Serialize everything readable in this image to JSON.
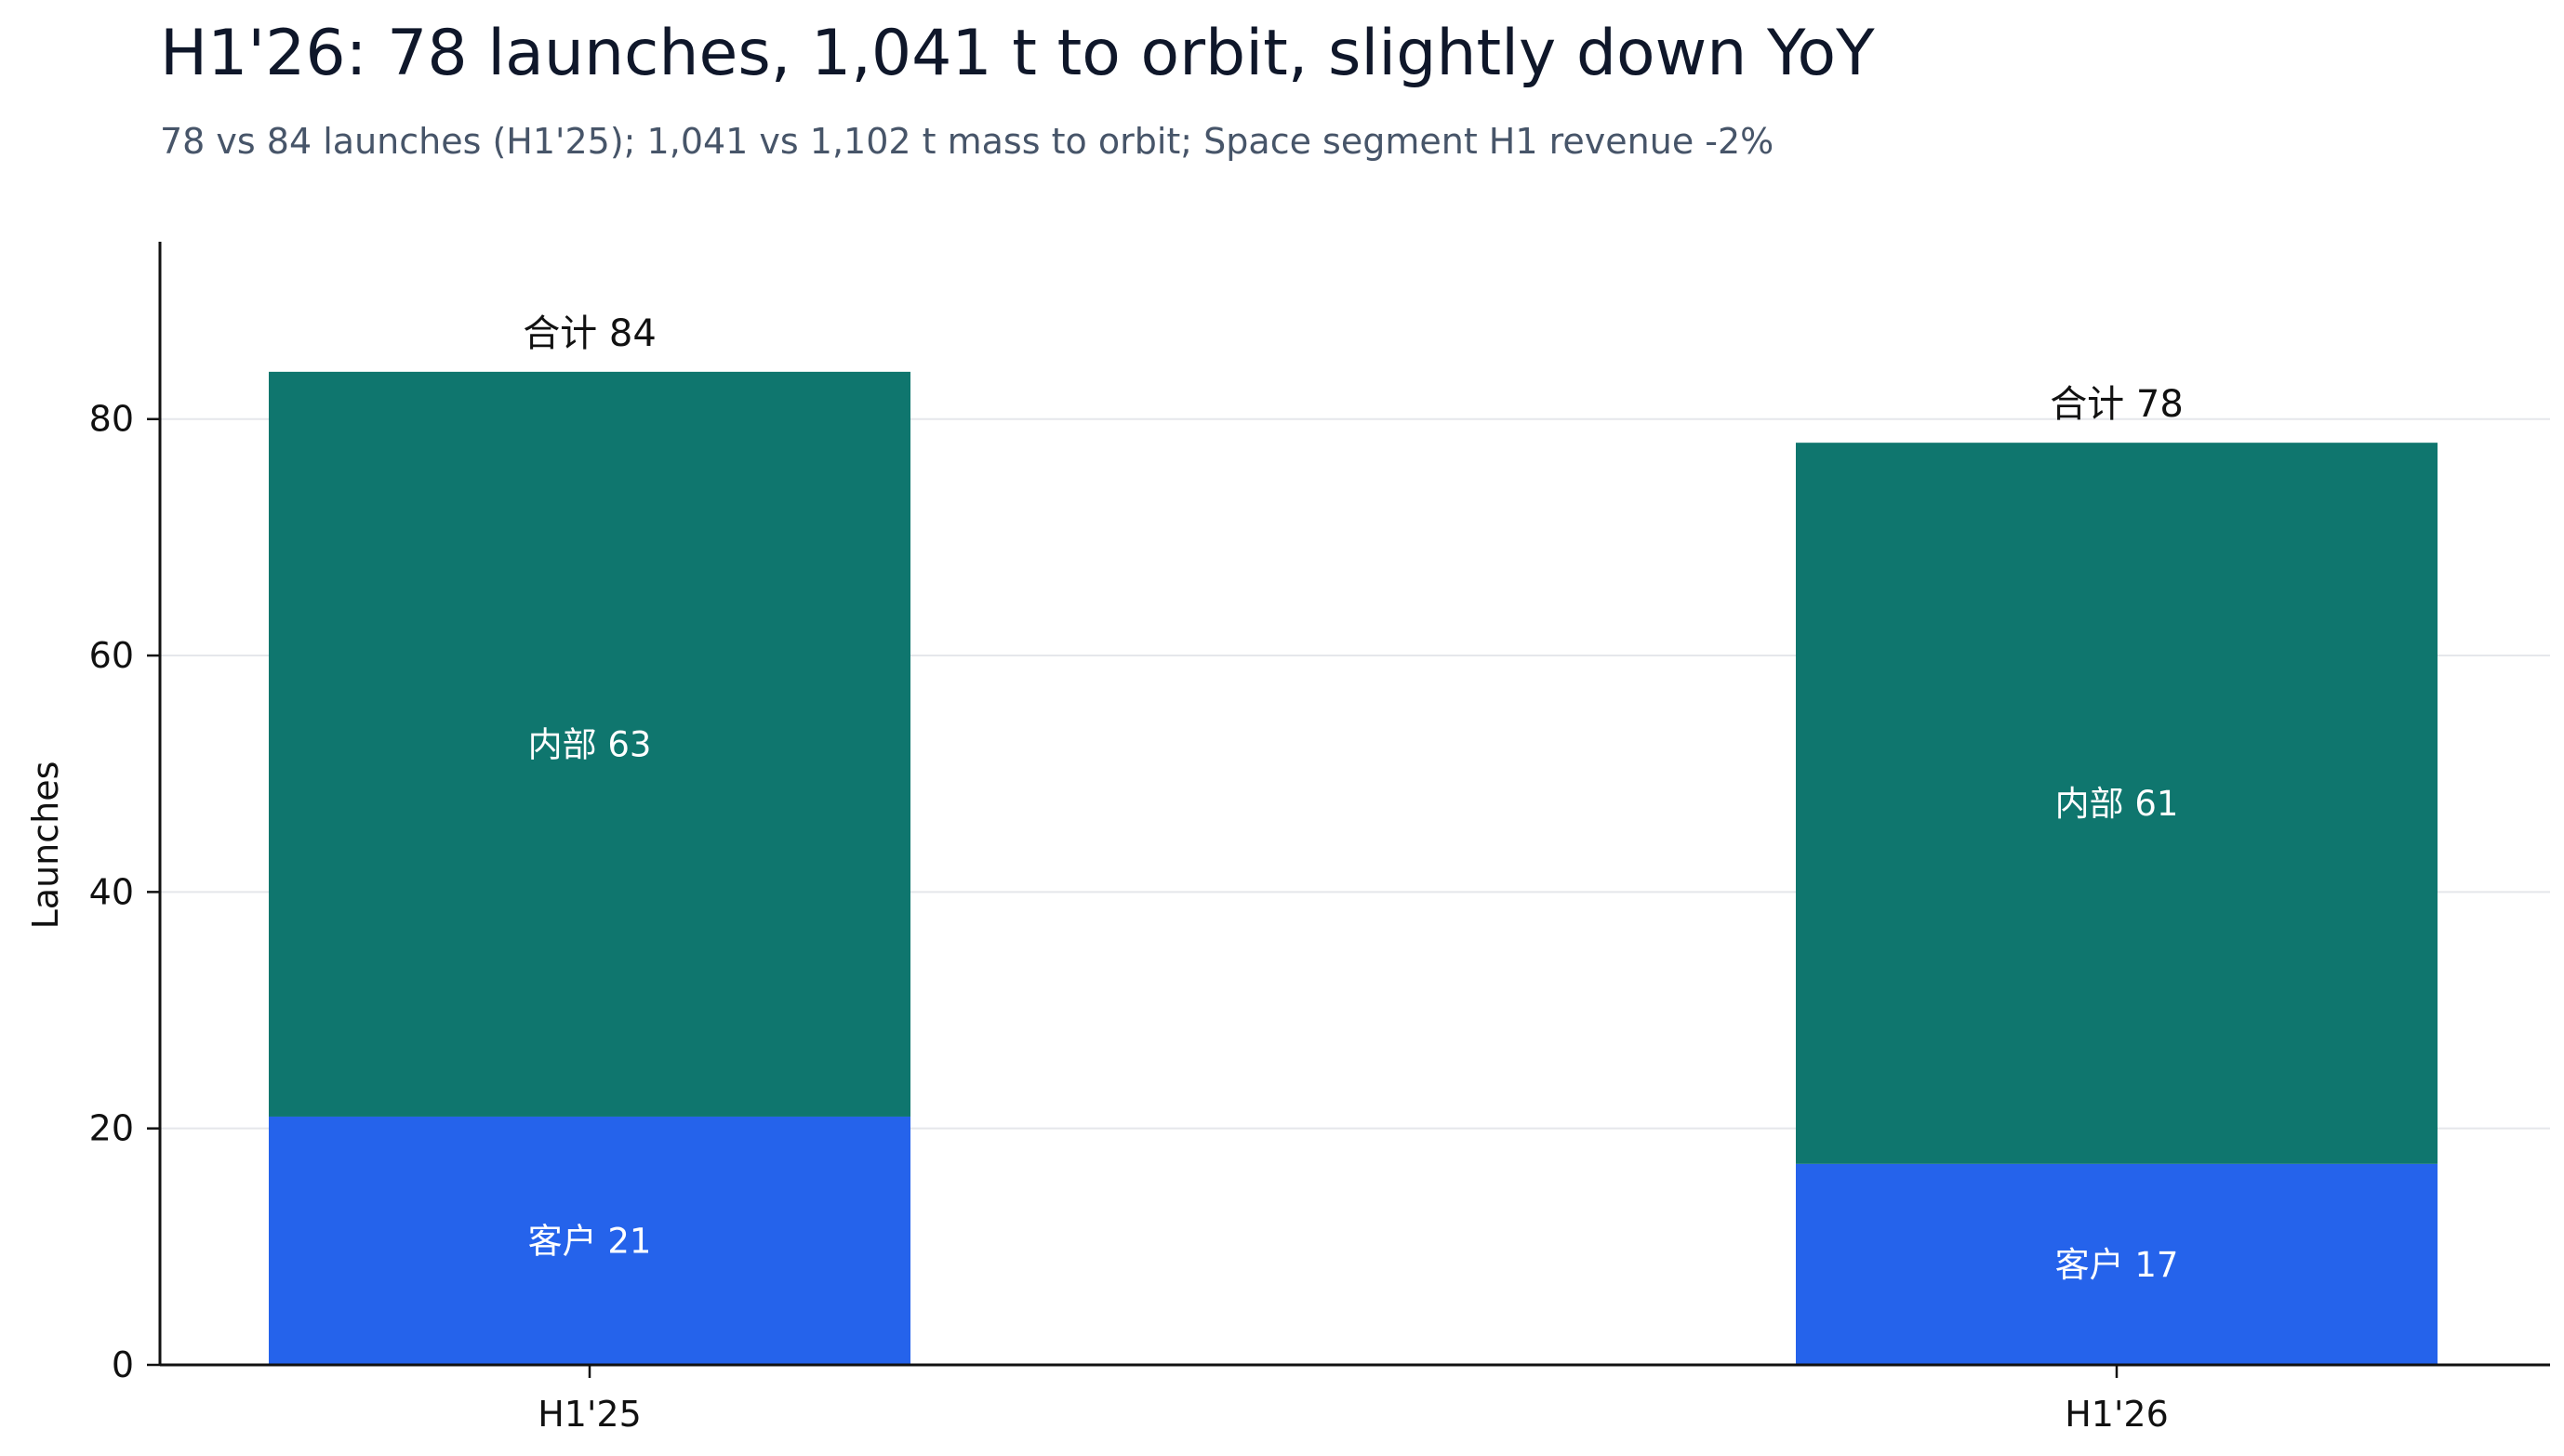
{
  "header": {
    "title": "H1'26: 78 launches, 1,041 t to orbit, slightly down YoY",
    "subtitle": "78 vs 84 launches (H1'25); 1,041 vs 1,102 t mass to orbit; Space segment H1 revenue -2%"
  },
  "chart_data": {
    "type": "bar",
    "stacked": true,
    "title": "H1'26: 78 launches, 1,041 t to orbit, slightly down YoY",
    "subtitle": "78 vs 84 launches (H1'25); 1,041 vs 1,102 t mass to orbit; Space segment H1 revenue -2%",
    "xlabel": "",
    "ylabel": "Launches",
    "categories": [
      "H1'25",
      "H1'26"
    ],
    "series": [
      {
        "name": "客户",
        "values": [
          21,
          17
        ],
        "color": "#2563eb"
      },
      {
        "name": "内部",
        "values": [
          63,
          61
        ],
        "color": "#0f766e"
      }
    ],
    "totals": [
      84,
      78
    ],
    "total_prefix": "合计",
    "segment_labels": [
      [
        "客户 21",
        "客户 17"
      ],
      [
        "内部 63",
        "内部 61"
      ]
    ],
    "total_labels": [
      "合计 84",
      "合计 78"
    ],
    "ylim": [
      0,
      95
    ],
    "yticks": [
      0,
      20,
      40,
      60,
      80
    ],
    "grid": true,
    "legend": "none"
  }
}
